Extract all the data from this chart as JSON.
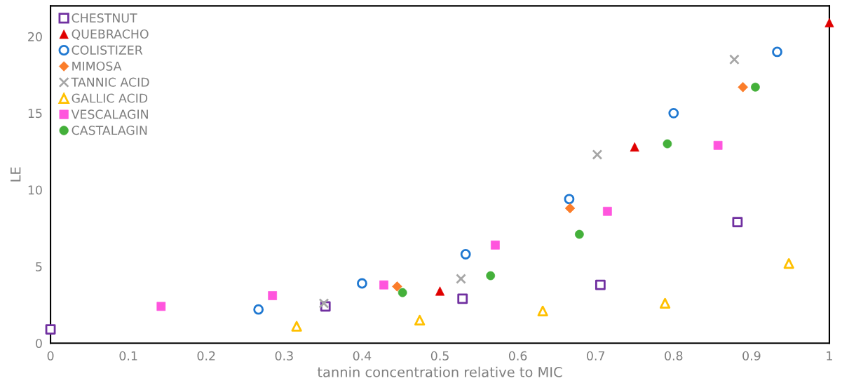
{
  "chart_data": {
    "type": "scatter",
    "xlabel": "tannin concentration relative to MIC",
    "ylabel": "LE",
    "xlim": [
      0,
      1
    ],
    "xticks": [
      0,
      0.1,
      0.2,
      0.3,
      0.4,
      0.5,
      0.6,
      0.7,
      0.8,
      0.9,
      1
    ],
    "ylim": [
      0,
      22
    ],
    "yticks": [
      0,
      5,
      10,
      15,
      20
    ],
    "grid": false,
    "legend": "top left",
    "series": [
      {
        "name": "CHESTNUT",
        "color": "#7030a0",
        "marker": "square",
        "x": [
          0,
          0.353,
          0.529,
          0.706,
          0.882
        ],
        "values": [
          0.9,
          2.4,
          2.9,
          3.8,
          7.9
        ]
      },
      {
        "name": "QUEBRACHO",
        "color": "#e00000",
        "marker": "triangle",
        "x": [
          0.5,
          0.75,
          1.0
        ],
        "values": [
          3.4,
          12.8,
          20.9
        ]
      },
      {
        "name": "COLISTIZER",
        "color": "#1f78d1",
        "marker": "circle",
        "x": [
          0.267,
          0.4,
          0.533,
          0.666,
          0.8,
          0.933
        ],
        "values": [
          2.2,
          3.9,
          5.8,
          9.4,
          15.0,
          19.0
        ]
      },
      {
        "name": "MIMOSA",
        "color": "#fb7d2a",
        "marker": "diamond",
        "x": [
          0.445,
          0.667,
          0.889
        ],
        "values": [
          3.7,
          8.8,
          16.7
        ]
      },
      {
        "name": "TANNIC ACID",
        "color": "#a6a6a6",
        "marker": "cross",
        "x": [
          0.351,
          0.527,
          0.702,
          0.878
        ],
        "values": [
          2.6,
          4.2,
          12.3,
          18.5
        ]
      },
      {
        "name": "GALLIC ACID",
        "color": "#ffc000",
        "marker": "triangle",
        "x": [
          0.316,
          0.474,
          0.632,
          0.789,
          0.948
        ],
        "values": [
          1.1,
          1.5,
          2.1,
          2.6,
          5.2
        ]
      },
      {
        "name": "VESCALAGIN",
        "color": "#ff55dd",
        "marker": "square",
        "x": [
          0.142,
          0.285,
          0.428,
          0.571,
          0.715,
          0.857
        ],
        "values": [
          2.4,
          3.1,
          3.8,
          6.4,
          8.6,
          12.9
        ]
      },
      {
        "name": "CASTALAGIN",
        "color": "#44b03a",
        "marker": "circle",
        "x": [
          0.452,
          0.565,
          0.679,
          0.792,
          0.905
        ],
        "values": [
          3.3,
          4.4,
          7.1,
          13.0,
          16.7
        ]
      }
    ]
  }
}
